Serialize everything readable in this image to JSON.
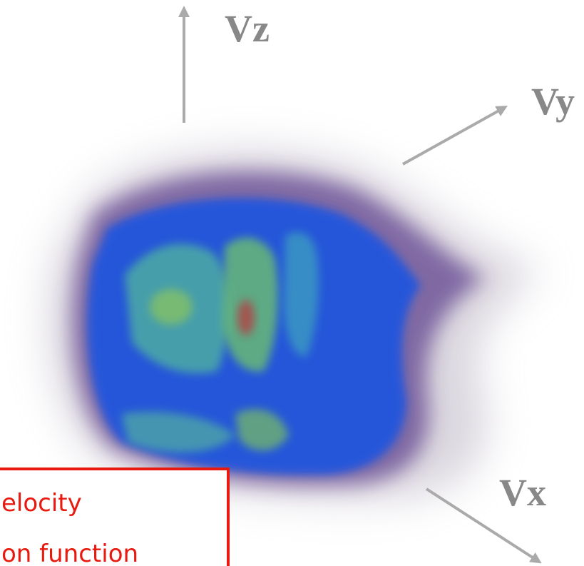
{
  "axes": {
    "z": {
      "label": "Vz"
    },
    "y": {
      "label": "Vy"
    },
    "x": {
      "label": "Vx"
    }
  },
  "caption": {
    "lines": [
      "elocity",
      "on function"
    ]
  }
}
